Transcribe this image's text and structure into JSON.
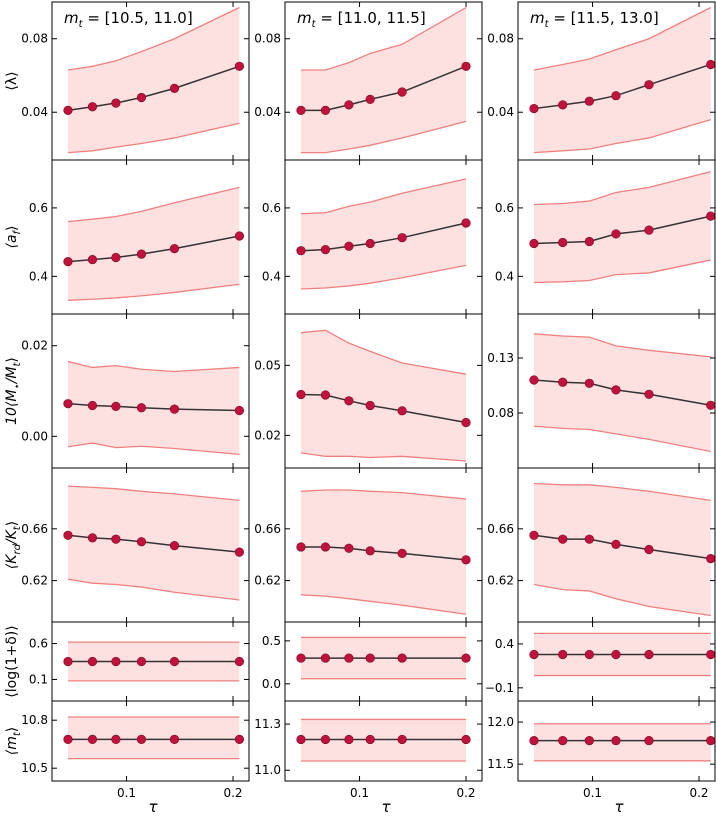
{
  "figure": {
    "x_axis_label": "τ",
    "x_tick_labels": [
      "0.1",
      "0.2"
    ],
    "x_ticks": [
      0.1,
      0.2
    ],
    "x_range": [
      0.03,
      0.215
    ],
    "colors": {
      "band_fill": "#fde0e0",
      "band_edge": "#f08080",
      "line": "#333333",
      "marker": "#c0123c"
    }
  },
  "columns": [
    {
      "title_prefix": "m",
      "title_sub": "t",
      "title_range": " = [10.5, 11.0]"
    },
    {
      "title_prefix": "m",
      "title_sub": "t",
      "title_range": " = [11.0, 11.5]"
    },
    {
      "title_prefix": "m",
      "title_sub": "t",
      "title_range": " = [11.5, 13.0]"
    }
  ],
  "rows": [
    {
      "ylabel": "⟨λ⟩"
    },
    {
      "ylabel": "⟨a_f⟩"
    },
    {
      "ylabel": "10⟨M⋆/M_t⟩"
    },
    {
      "ylabel": "⟨K_rd/K_t⟩"
    },
    {
      "ylabel": "⟨log(1+δ)⟩"
    },
    {
      "ylabel": "⟨m_t⟩"
    }
  ],
  "chart_data": [
    {
      "type": "line",
      "row": 0,
      "col": 0,
      "ylim": [
        0.014,
        0.1
      ],
      "yticks": [
        0.04,
        0.08
      ],
      "ytick_labels": [
        "0.04",
        "0.08"
      ],
      "x": [
        0.045,
        0.068,
        0.09,
        0.114,
        0.145,
        0.206
      ],
      "y": [
        0.041,
        0.043,
        0.045,
        0.048,
        0.053,
        0.065
      ],
      "band_upper": [
        0.063,
        0.065,
        0.068,
        0.073,
        0.08,
        0.097
      ],
      "band_lower": [
        0.018,
        0.019,
        0.021,
        0.023,
        0.026,
        0.034
      ]
    },
    {
      "type": "line",
      "row": 0,
      "col": 1,
      "ylim": [
        0.014,
        0.1
      ],
      "yticks": [
        0.04,
        0.08
      ],
      "ytick_labels": [
        "0.04",
        "0.08"
      ],
      "x": [
        0.045,
        0.068,
        0.09,
        0.11,
        0.14,
        0.2
      ],
      "y": [
        0.041,
        0.041,
        0.044,
        0.047,
        0.051,
        0.065
      ],
      "band_upper": [
        0.063,
        0.063,
        0.067,
        0.072,
        0.077,
        0.097
      ],
      "band_lower": [
        0.018,
        0.018,
        0.02,
        0.022,
        0.026,
        0.035
      ]
    },
    {
      "type": "line",
      "row": 0,
      "col": 2,
      "ylim": [
        0.014,
        0.1
      ],
      "yticks": [
        0.04,
        0.08
      ],
      "ytick_labels": [
        "0.04",
        "0.08"
      ],
      "x": [
        0.045,
        0.072,
        0.097,
        0.122,
        0.153,
        0.211
      ],
      "y": [
        0.042,
        0.044,
        0.046,
        0.049,
        0.055,
        0.066
      ],
      "band_upper": [
        0.063,
        0.066,
        0.069,
        0.074,
        0.08,
        0.097
      ],
      "band_lower": [
        0.018,
        0.019,
        0.02,
        0.023,
        0.026,
        0.036
      ]
    },
    {
      "type": "line",
      "row": 1,
      "col": 0,
      "ylim": [
        0.29,
        0.74
      ],
      "yticks": [
        0.4,
        0.6
      ],
      "ytick_labels": [
        "0.4",
        "0.6"
      ],
      "x": [
        0.045,
        0.068,
        0.09,
        0.114,
        0.145,
        0.206
      ],
      "y": [
        0.443,
        0.449,
        0.455,
        0.465,
        0.481,
        0.518
      ],
      "band_upper": [
        0.56,
        0.567,
        0.575,
        0.59,
        0.615,
        0.66
      ],
      "band_lower": [
        0.33,
        0.333,
        0.337,
        0.343,
        0.353,
        0.377
      ]
    },
    {
      "type": "line",
      "row": 1,
      "col": 1,
      "ylim": [
        0.29,
        0.74
      ],
      "yticks": [
        0.4,
        0.6
      ],
      "ytick_labels": [
        "0.4",
        "0.6"
      ],
      "x": [
        0.045,
        0.068,
        0.09,
        0.11,
        0.14,
        0.2
      ],
      "y": [
        0.475,
        0.478,
        0.488,
        0.496,
        0.513,
        0.556
      ],
      "band_upper": [
        0.583,
        0.586,
        0.605,
        0.617,
        0.643,
        0.685
      ],
      "band_lower": [
        0.363,
        0.366,
        0.372,
        0.38,
        0.396,
        0.432
      ]
    },
    {
      "type": "line",
      "row": 1,
      "col": 2,
      "ylim": [
        0.29,
        0.74
      ],
      "yticks": [
        0.4,
        0.6
      ],
      "ytick_labels": [
        "0.4",
        "0.6"
      ],
      "x": [
        0.045,
        0.072,
        0.097,
        0.122,
        0.153,
        0.211
      ],
      "y": [
        0.496,
        0.499,
        0.502,
        0.524,
        0.535,
        0.576
      ],
      "band_upper": [
        0.61,
        0.613,
        0.62,
        0.645,
        0.66,
        0.706
      ],
      "band_lower": [
        0.382,
        0.384,
        0.388,
        0.405,
        0.41,
        0.448
      ]
    },
    {
      "type": "line",
      "row": 2,
      "col": 0,
      "ylim": [
        -0.007,
        0.027
      ],
      "yticks": [
        0.0,
        0.02
      ],
      "ytick_labels": [
        "0.00",
        "0.02"
      ],
      "x": [
        0.045,
        0.068,
        0.09,
        0.114,
        0.145,
        0.206
      ],
      "y": [
        0.0072,
        0.0068,
        0.0066,
        0.0063,
        0.006,
        0.0057
      ],
      "band_upper": [
        0.0165,
        0.0152,
        0.0156,
        0.0148,
        0.0143,
        0.0152
      ],
      "band_lower": [
        -0.0023,
        -0.0015,
        -0.0025,
        -0.0022,
        -0.0027,
        -0.004
      ]
    },
    {
      "type": "line",
      "row": 2,
      "col": 1,
      "ylim": [
        0.006,
        0.072
      ],
      "yticks": [
        0.02,
        0.05
      ],
      "ytick_labels": [
        "0.02",
        "0.05"
      ],
      "x": [
        0.045,
        0.068,
        0.09,
        0.11,
        0.14,
        0.2
      ],
      "y": [
        0.0375,
        0.0373,
        0.0348,
        0.0328,
        0.0305,
        0.0255
      ],
      "band_upper": [
        0.064,
        0.065,
        0.0595,
        0.056,
        0.051,
        0.0462
      ],
      "band_lower": [
        0.0125,
        0.011,
        0.011,
        0.0105,
        0.011,
        0.009
      ]
    },
    {
      "type": "line",
      "row": 2,
      "col": 2,
      "ylim": [
        0.03,
        0.17
      ],
      "yticks": [
        0.08,
        0.13
      ],
      "ytick_labels": [
        "0.08",
        "0.13"
      ],
      "x": [
        0.045,
        0.072,
        0.097,
        0.122,
        0.153,
        0.211
      ],
      "y": [
        0.11,
        0.108,
        0.107,
        0.101,
        0.097,
        0.087
      ],
      "band_upper": [
        0.152,
        0.15,
        0.149,
        0.141,
        0.137,
        0.131
      ],
      "band_lower": [
        0.068,
        0.066,
        0.065,
        0.061,
        0.056,
        0.045
      ]
    },
    {
      "type": "line",
      "row": 3,
      "col": 0,
      "ylim": [
        0.588,
        0.707
      ],
      "yticks": [
        0.62,
        0.66
      ],
      "ytick_labels": [
        "0.62",
        "0.66"
      ],
      "x": [
        0.045,
        0.068,
        0.09,
        0.114,
        0.145,
        0.206
      ],
      "y": [
        0.655,
        0.653,
        0.652,
        0.65,
        0.647,
        0.642
      ],
      "band_upper": [
        0.693,
        0.692,
        0.691,
        0.689,
        0.687,
        0.682
      ],
      "band_lower": [
        0.621,
        0.618,
        0.617,
        0.615,
        0.611,
        0.605
      ]
    },
    {
      "type": "line",
      "row": 3,
      "col": 1,
      "ylim": [
        0.588,
        0.707
      ],
      "yticks": [
        0.62,
        0.66
      ],
      "ytick_labels": [
        "0.62",
        "0.66"
      ],
      "x": [
        0.045,
        0.068,
        0.09,
        0.11,
        0.14,
        0.2
      ],
      "y": [
        0.646,
        0.646,
        0.645,
        0.643,
        0.641,
        0.636
      ],
      "band_upper": [
        0.689,
        0.69,
        0.69,
        0.689,
        0.688,
        0.683
      ],
      "band_lower": [
        0.609,
        0.608,
        0.606,
        0.604,
        0.601,
        0.594
      ]
    },
    {
      "type": "line",
      "row": 3,
      "col": 2,
      "ylim": [
        0.588,
        0.707
      ],
      "yticks": [
        0.62,
        0.66
      ],
      "ytick_labels": [
        "0.62",
        "0.66"
      ],
      "x": [
        0.045,
        0.072,
        0.097,
        0.122,
        0.153,
        0.211
      ],
      "y": [
        0.655,
        0.652,
        0.652,
        0.648,
        0.644,
        0.637
      ],
      "band_upper": [
        0.695,
        0.694,
        0.694,
        0.692,
        0.689,
        0.682
      ],
      "band_lower": [
        0.617,
        0.613,
        0.612,
        0.606,
        0.6,
        0.593
      ]
    },
    {
      "type": "line",
      "row": 4,
      "col": 0,
      "ylim": [
        -0.2,
        0.9
      ],
      "yticks": [
        0.1,
        0.6
      ],
      "ytick_labels": [
        "0.1",
        "0.6"
      ],
      "x": [
        0.045,
        0.068,
        0.09,
        0.114,
        0.145,
        0.206
      ],
      "y": [
        0.35,
        0.35,
        0.35,
        0.35,
        0.35,
        0.35
      ],
      "band_upper": [
        0.62,
        0.62,
        0.62,
        0.62,
        0.62,
        0.62
      ],
      "band_lower": [
        0.08,
        0.08,
        0.08,
        0.08,
        0.08,
        0.08
      ]
    },
    {
      "type": "line",
      "row": 4,
      "col": 1,
      "ylim": [
        -0.2,
        0.72
      ],
      "yticks": [
        0.0,
        0.5
      ],
      "ytick_labels": [
        "0.0",
        "0.5"
      ],
      "x": [
        0.045,
        0.068,
        0.09,
        0.11,
        0.14,
        0.2
      ],
      "y": [
        0.3,
        0.3,
        0.3,
        0.3,
        0.3,
        0.3
      ],
      "band_upper": [
        0.54,
        0.54,
        0.54,
        0.54,
        0.54,
        0.54
      ],
      "band_lower": [
        0.06,
        0.06,
        0.06,
        0.06,
        0.06,
        0.06
      ]
    },
    {
      "type": "line",
      "row": 4,
      "col": 2,
      "ylim": [
        -0.25,
        0.65
      ],
      "yticks": [
        -0.1,
        0.4
      ],
      "ytick_labels": [
        "−0.1",
        "0.4"
      ],
      "x": [
        0.045,
        0.072,
        0.097,
        0.122,
        0.153,
        0.211
      ],
      "y": [
        0.28,
        0.28,
        0.28,
        0.28,
        0.28,
        0.28
      ],
      "band_upper": [
        0.52,
        0.52,
        0.52,
        0.52,
        0.52,
        0.52
      ],
      "band_lower": [
        0.04,
        0.04,
        0.04,
        0.04,
        0.04,
        0.04
      ]
    },
    {
      "type": "line",
      "row": 5,
      "col": 0,
      "ylim": [
        10.42,
        10.92
      ],
      "yticks": [
        10.5,
        10.8
      ],
      "ytick_labels": [
        "10.5",
        "10.8"
      ],
      "x": [
        0.045,
        0.068,
        0.09,
        0.114,
        0.145,
        0.206
      ],
      "y": [
        10.68,
        10.68,
        10.68,
        10.68,
        10.68,
        10.68
      ],
      "band_upper": [
        10.82,
        10.82,
        10.82,
        10.82,
        10.82,
        10.82
      ],
      "band_lower": [
        10.56,
        10.56,
        10.56,
        10.56,
        10.56,
        10.56
      ]
    },
    {
      "type": "line",
      "row": 5,
      "col": 1,
      "ylim": [
        10.93,
        11.45
      ],
      "yticks": [
        11.0,
        11.3
      ],
      "ytick_labels": [
        "11.0",
        "11.3"
      ],
      "x": [
        0.045,
        0.068,
        0.09,
        0.11,
        0.14,
        0.2
      ],
      "y": [
        11.2,
        11.2,
        11.2,
        11.2,
        11.2,
        11.2
      ],
      "band_upper": [
        11.33,
        11.33,
        11.33,
        11.33,
        11.33,
        11.33
      ],
      "band_lower": [
        11.06,
        11.06,
        11.06,
        11.06,
        11.06,
        11.06
      ]
    },
    {
      "type": "line",
      "row": 5,
      "col": 2,
      "ylim": [
        11.3,
        12.25
      ],
      "yticks": [
        11.5,
        12.0
      ],
      "ytick_labels": [
        "11.5",
        "12.0"
      ],
      "x": [
        0.045,
        0.072,
        0.097,
        0.122,
        0.153,
        0.211
      ],
      "y": [
        11.78,
        11.78,
        11.78,
        11.78,
        11.78,
        11.78
      ],
      "band_upper": [
        11.98,
        11.98,
        11.98,
        11.98,
        11.98,
        11.98
      ],
      "band_lower": [
        11.54,
        11.54,
        11.54,
        11.54,
        11.54,
        11.54
      ]
    }
  ]
}
